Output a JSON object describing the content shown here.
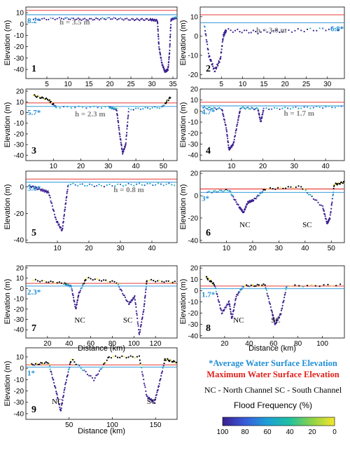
{
  "chart_data": {
    "type": "scatter",
    "ylabel": "Elevation (m)",
    "xlabel": "Distance (km)",
    "colorbar": {
      "label": "Flood Frequency (%)",
      "ticks": [
        "100",
        "80",
        "60",
        "40",
        "20",
        "0"
      ],
      "range": [
        100,
        0
      ],
      "colors": [
        "#3b1f8f",
        "#3a5bd9",
        "#1ea0d6",
        "#20c0a0",
        "#8fd248",
        "#f6e62a"
      ]
    },
    "legend": {
      "avg_wse": "*Average Water Surface Elevation",
      "max_wse": "Maximum Water Surface Elevation",
      "channels": "NC - North Channel   SC - South Channel"
    },
    "panels": [
      {
        "id": "1",
        "label": "1",
        "xlim": [
          0,
          36
        ],
        "xticks": [
          "5",
          "10",
          "15",
          "20",
          "25",
          "30",
          "35"
        ],
        "xtickvals": [
          5,
          10,
          15,
          20,
          25,
          30,
          35
        ],
        "ylim": [
          -48,
          15
        ],
        "yticks": [
          "10",
          "0",
          "-10",
          "-20",
          "-30",
          "-40"
        ],
        "ytickvals": [
          10,
          0,
          -10,
          -20,
          -30,
          -40
        ],
        "avg": 8.2,
        "avg_label": "8.2*",
        "max": 12,
        "h_label": "h = 3.5 m",
        "channels": []
      },
      {
        "id": "2",
        "label": "2",
        "xlim": [
          0,
          34
        ],
        "xticks": [
          "5",
          "10",
          "15",
          "20",
          "25",
          "30"
        ],
        "xtickvals": [
          5,
          10,
          15,
          20,
          25,
          30
        ],
        "ylim": [
          -22,
          15
        ],
        "yticks": [
          "10",
          "0",
          "-10",
          "-20"
        ],
        "ytickvals": [
          10,
          0,
          -10,
          -20
        ],
        "avg": 6.8,
        "avg_label": "6.8*",
        "max": 11,
        "h_label": "h = 3.0 m",
        "channels": []
      },
      {
        "id": "3",
        "label": "3",
        "xlim": [
          0,
          55
        ],
        "xticks": [
          "10",
          "20",
          "30",
          "40",
          "50"
        ],
        "xtickvals": [
          10,
          20,
          30,
          40,
          50
        ],
        "ylim": [
          -45,
          22
        ],
        "yticks": [
          "20",
          "10",
          "0",
          "-10",
          "-20",
          "-30",
          "-40"
        ],
        "ytickvals": [
          20,
          10,
          0,
          -10,
          -20,
          -30,
          -40
        ],
        "avg": 5.7,
        "avg_label": "5.7*",
        "max": 9,
        "h_label": "h = 2.3 m",
        "channels": []
      },
      {
        "id": "4",
        "label": "4",
        "xlim": [
          0,
          46
        ],
        "xticks": [
          "10",
          "20",
          "30",
          "40"
        ],
        "xtickvals": [
          10,
          20,
          30,
          40
        ],
        "ylim": [
          -45,
          20
        ],
        "yticks": [
          "20",
          "10",
          "0",
          "-10",
          "-20",
          "-30",
          "-40"
        ],
        "ytickvals": [
          20,
          10,
          0,
          -10,
          -20,
          -30,
          -40
        ],
        "avg": 4.7,
        "avg_label": "4.7*",
        "max": 8,
        "h_label": "h = 1.7 m",
        "channels": []
      },
      {
        "id": "5",
        "label": "5",
        "xlim": [
          0,
          48
        ],
        "xticks": [
          "10",
          "20",
          "30",
          "40"
        ],
        "xtickvals": [
          10,
          20,
          30,
          40
        ],
        "ylim": [
          -42,
          12
        ],
        "yticks": [
          "0",
          "-20",
          "-40"
        ],
        "ytickvals": [
          0,
          -20,
          -40
        ],
        "avg": 3.6,
        "avg_label": "3.6*",
        "max": 6,
        "h_label": "h = 0.8 m",
        "channels": []
      },
      {
        "id": "6",
        "label": "6",
        "xlim": [
          0,
          55
        ],
        "xticks": [
          "10",
          "20",
          "30",
          "40",
          "50"
        ],
        "xtickvals": [
          10,
          20,
          30,
          40,
          50
        ],
        "ylim": [
          -42,
          22
        ],
        "yticks": [
          "20",
          "0",
          "-20",
          "-40"
        ],
        "ytickvals": [
          20,
          0,
          -20,
          -40
        ],
        "avg": 3,
        "avg_label": "3*",
        "max": 6,
        "h_label": "",
        "channels": [
          {
            "text": "NC",
            "x": 15
          },
          {
            "text": "SC",
            "x": 39
          }
        ]
      },
      {
        "id": "7",
        "label": "7",
        "xlim": [
          0,
          140
        ],
        "xticks": [
          "20",
          "40",
          "60",
          "80",
          "100",
          "120"
        ],
        "xtickvals": [
          20,
          40,
          60,
          80,
          100,
          120
        ],
        "ylim": [
          -48,
          22
        ],
        "yticks": [
          "20",
          "10",
          "0",
          "-10",
          "-20",
          "-30",
          "-40"
        ],
        "ytickvals": [
          20,
          10,
          0,
          -10,
          -20,
          -30,
          -40
        ],
        "avg": 2.3,
        "avg_label": "2.3*",
        "max": 5,
        "h_label": "",
        "channels": [
          {
            "text": "NC",
            "x": 45
          },
          {
            "text": "SC",
            "x": 90
          }
        ]
      },
      {
        "id": "8",
        "label": "8",
        "xlim": [
          0,
          118
        ],
        "xticks": [
          "20",
          "40",
          "60",
          "80",
          "100"
        ],
        "xtickvals": [
          20,
          40,
          60,
          80,
          100
        ],
        "ylim": [
          -42,
          22
        ],
        "yticks": [
          "20",
          "10",
          "0",
          "-10",
          "-20",
          "-30",
          "-40"
        ],
        "ytickvals": [
          20,
          10,
          0,
          -10,
          -20,
          -30,
          -40
        ],
        "avg": 1.7,
        "avg_label": "1.7*",
        "max": 4,
        "h_label": "",
        "channels": [
          {
            "text": "NC",
            "x": 27
          },
          {
            "text": "SC",
            "x": 58
          }
        ]
      },
      {
        "id": "9",
        "label": "9",
        "xlim": [
          0,
          175
        ],
        "xticks": [
          "50",
          "100",
          "150"
        ],
        "xtickvals": [
          50,
          100,
          150
        ],
        "ylim": [
          -45,
          18
        ],
        "yticks": [
          "10",
          "0",
          "-10",
          "-20",
          "-30",
          "-40"
        ],
        "ytickvals": [
          10,
          0,
          -10,
          -20,
          -30,
          -40
        ],
        "avg": 1,
        "avg_label": "1*",
        "max": 3,
        "h_label": "",
        "channels": [
          {
            "text": "NC",
            "x": 30
          },
          {
            "text": "SC",
            "x": 140
          }
        ]
      }
    ]
  }
}
